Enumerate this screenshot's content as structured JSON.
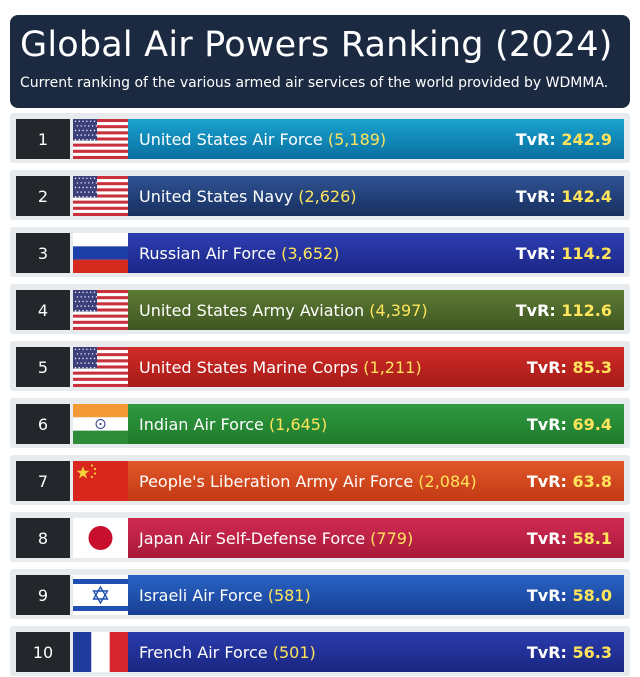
{
  "header": {
    "title": "Global Air Powers Ranking (2024)",
    "subtitle": "Current ranking of the various armed air services of the world provided by WDMMA."
  },
  "tvr_label": "TvR:",
  "chart_data": {
    "type": "table",
    "rows": [
      {
        "rank": "1",
        "name": "United States Air Force",
        "aircraft": "(5,189)",
        "tvr": "242.9",
        "flag": "usa",
        "color_a": "#1aa3cf",
        "color_b": "#0a6fa0"
      },
      {
        "rank": "2",
        "name": "United States Navy",
        "aircraft": "(2,626)",
        "tvr": "142.4",
        "flag": "usa",
        "color_a": "#2f5394",
        "color_b": "#172f5e"
      },
      {
        "rank": "3",
        "name": "Russian Air Force",
        "aircraft": "(3,652)",
        "tvr": "114.2",
        "flag": "russia",
        "color_a": "#2e3fb3",
        "color_b": "#1b2685"
      },
      {
        "rank": "4",
        "name": "United States Army Aviation",
        "aircraft": "(4,397)",
        "tvr": "112.6",
        "flag": "usa",
        "color_a": "#5d7a33",
        "color_b": "#3e5722"
      },
      {
        "rank": "5",
        "name": "United States Marine Corps",
        "aircraft": "(1,211)",
        "tvr": "85.3",
        "flag": "usa",
        "color_a": "#d12b27",
        "color_b": "#a61b18"
      },
      {
        "rank": "6",
        "name": "Indian Air Force",
        "aircraft": "(1,645)",
        "tvr": "69.4",
        "flag": "india",
        "color_a": "#2f9a3f",
        "color_b": "#1f7a2c"
      },
      {
        "rank": "7",
        "name": "People's Liberation Army Air Force",
        "aircraft": "(2,084)",
        "tvr": "63.8",
        "flag": "china",
        "color_a": "#e2572a",
        "color_b": "#c23a14"
      },
      {
        "rank": "8",
        "name": "Japan Air Self-Defense Force",
        "aircraft": "(779)",
        "tvr": "58.1",
        "flag": "japan",
        "color_a": "#d12a52",
        "color_b": "#a71a3a"
      },
      {
        "rank": "9",
        "name": "Israeli Air Force",
        "aircraft": "(581)",
        "tvr": "58.0",
        "flag": "israel",
        "color_a": "#2a63c4",
        "color_b": "#173f93"
      },
      {
        "rank": "10",
        "name": "French Air Force",
        "aircraft": "(501)",
        "tvr": "56.3",
        "flag": "france",
        "color_a": "#2a3cae",
        "color_b": "#1a2680"
      }
    ]
  }
}
